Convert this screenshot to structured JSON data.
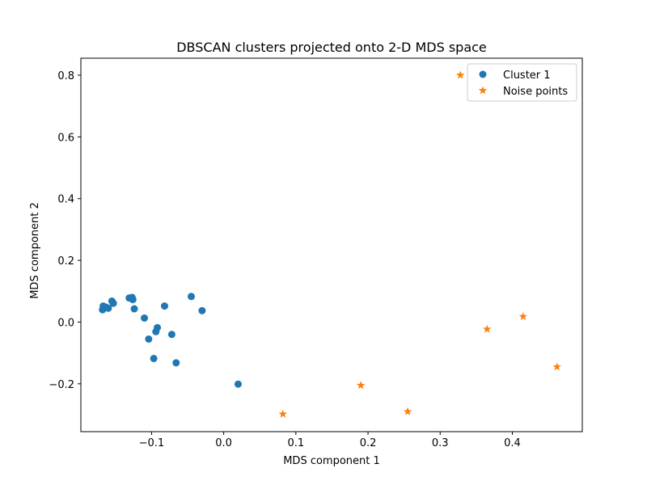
{
  "chart_data": {
    "type": "scatter",
    "title": "DBSCAN clusters projected onto 2-D MDS space",
    "xlabel": "MDS component 1",
    "ylabel": "MDS component 2",
    "xlim": [
      -0.198,
      0.497
    ],
    "ylim": [
      -0.355,
      0.855
    ],
    "xticks": [
      -0.1,
      0.0,
      0.1,
      0.2,
      0.3,
      0.4
    ],
    "xtick_labels": [
      "−0.1",
      "0.0",
      "0.1",
      "0.2",
      "0.3",
      "0.4"
    ],
    "yticks": [
      -0.2,
      0.0,
      0.2,
      0.4,
      0.6,
      0.8
    ],
    "ytick_labels": [
      "−0.2",
      "0.0",
      "0.2",
      "0.4",
      "0.6",
      "0.8"
    ],
    "grid": false,
    "legend_position": "top-right",
    "series": [
      {
        "name": "Cluster 1",
        "marker": "circle",
        "color": "#1f77b4",
        "points": [
          [
            -0.168,
            0.04
          ],
          [
            -0.167,
            0.052
          ],
          [
            -0.163,
            0.048
          ],
          [
            -0.16,
            0.045
          ],
          [
            -0.155,
            0.068
          ],
          [
            -0.153,
            0.061
          ],
          [
            -0.131,
            0.078
          ],
          [
            -0.127,
            0.08
          ],
          [
            -0.126,
            0.073
          ],
          [
            -0.124,
            0.043
          ],
          [
            -0.11,
            0.013
          ],
          [
            -0.104,
            -0.055
          ],
          [
            -0.097,
            -0.118
          ],
          [
            -0.094,
            -0.031
          ],
          [
            -0.092,
            -0.018
          ],
          [
            -0.082,
            0.052
          ],
          [
            -0.072,
            -0.04
          ],
          [
            -0.066,
            -0.132
          ],
          [
            -0.045,
            0.083
          ],
          [
            -0.03,
            0.037
          ],
          [
            0.02,
            -0.201
          ]
        ]
      },
      {
        "name": "Noise points",
        "marker": "star",
        "color": "#ff7f0e",
        "points": [
          [
            0.082,
            -0.298
          ],
          [
            0.19,
            -0.205
          ],
          [
            0.255,
            -0.29
          ],
          [
            0.328,
            0.8
          ],
          [
            0.365,
            -0.023
          ],
          [
            0.415,
            0.018
          ],
          [
            0.462,
            -0.145
          ]
        ]
      }
    ]
  }
}
